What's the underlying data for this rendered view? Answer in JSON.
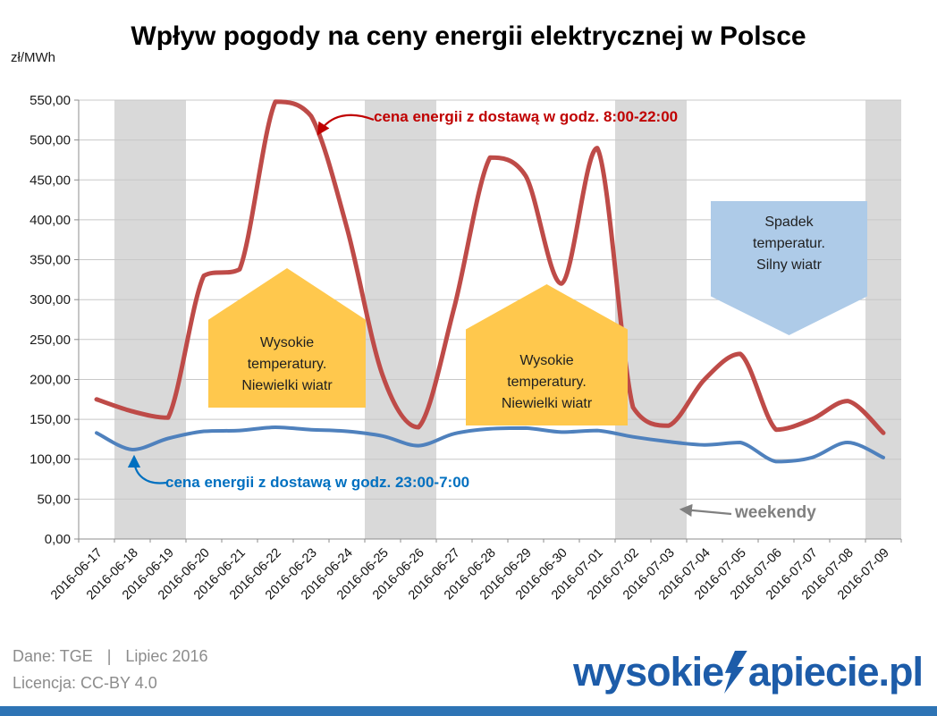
{
  "title": "Wpływ pogody na ceny energii elektrycznej w Polsce",
  "y_axis_unit": "zł/MWh",
  "annotations": {
    "day_price_label": "cena energii z dostawą w godz. 8:00-22:00",
    "night_price_label": "cena energii z dostawą w godz. 23:00-7:00",
    "weekend_label": "weekendy",
    "hot_1": {
      "line1": "Wysokie temperatury.",
      "line2": "Niewielki wiatr"
    },
    "hot_2": {
      "line1": "Wysokie temperatury.",
      "line2": "Niewielki wiatr"
    },
    "cold": {
      "line1": "Spadek temperatur.",
      "line2": "Silny wiatr"
    }
  },
  "footer": {
    "source": "Dane: TGE",
    "separator": "|",
    "period": "Lipiec 2016",
    "license": "Licencja: CC-BY 4.0"
  },
  "logo": {
    "prefix": "wysokie",
    "suffix": "apiecie.pl",
    "icon": "lightning-bolt-icon"
  },
  "colors": {
    "day_line": "#BE4B48",
    "night_line": "#4F81BD",
    "day_label": "#C00000",
    "night_label": "#0070C0",
    "weekend_band": "#D9D9D9",
    "weekend_label": "#808080",
    "grid": "#C8C8C8",
    "axis": "#8C8C8C",
    "callout_yellow": "#FFC84D",
    "callout_blue": "#AECBE8",
    "callout_text": "#1F1F1F",
    "footer_text": "#8C8C8C",
    "bottom_bar": "#2E74B5",
    "logo": "#1D5CA9"
  },
  "chart_data": {
    "type": "line",
    "x": [
      "2016-06-17",
      "2016-06-18",
      "2016-06-19",
      "2016-06-20",
      "2016-06-21",
      "2016-06-22",
      "2016-06-23",
      "2016-06-24",
      "2016-06-25",
      "2016-06-26",
      "2016-06-27",
      "2016-06-28",
      "2016-06-29",
      "2016-06-30",
      "2016-07-01",
      "2016-07-02",
      "2016-07-03",
      "2016-07-04",
      "2016-07-05",
      "2016-07-06",
      "2016-07-07",
      "2016-07-08",
      "2016-07-09"
    ],
    "series": [
      {
        "name": "cena energii z dostawą w godz. 8:00-22:00",
        "color": "#BE4B48",
        "values": [
          175,
          160,
          152,
          330,
          338,
          548,
          530,
          390,
          205,
          140,
          290,
          478,
          455,
          320,
          490,
          165,
          142,
          200,
          232,
          137,
          150,
          173,
          133
        ]
      },
      {
        "name": "cena energii z dostawą w godz. 23:00-7:00",
        "color": "#4F81BD",
        "values": [
          133,
          112,
          126,
          135,
          136,
          140,
          137,
          135,
          129,
          117,
          132,
          138,
          139,
          134,
          136,
          128,
          122,
          118,
          121,
          97,
          102,
          121,
          102
        ]
      }
    ],
    "ylabel": "zł/MWh",
    "ylim": [
      0,
      550
    ],
    "ytick_step": 50,
    "ytick_labels": [
      "0,00",
      "50,00",
      "100,00",
      "150,00",
      "200,00",
      "250,00",
      "300,00",
      "350,00",
      "400,00",
      "450,00",
      "500,00",
      "550,00"
    ],
    "weekend_band_indices": [
      [
        1,
        2
      ],
      [
        8,
        9
      ],
      [
        15,
        16
      ],
      [
        22,
        22
      ]
    ],
    "grid": true,
    "legend_position": "none"
  }
}
